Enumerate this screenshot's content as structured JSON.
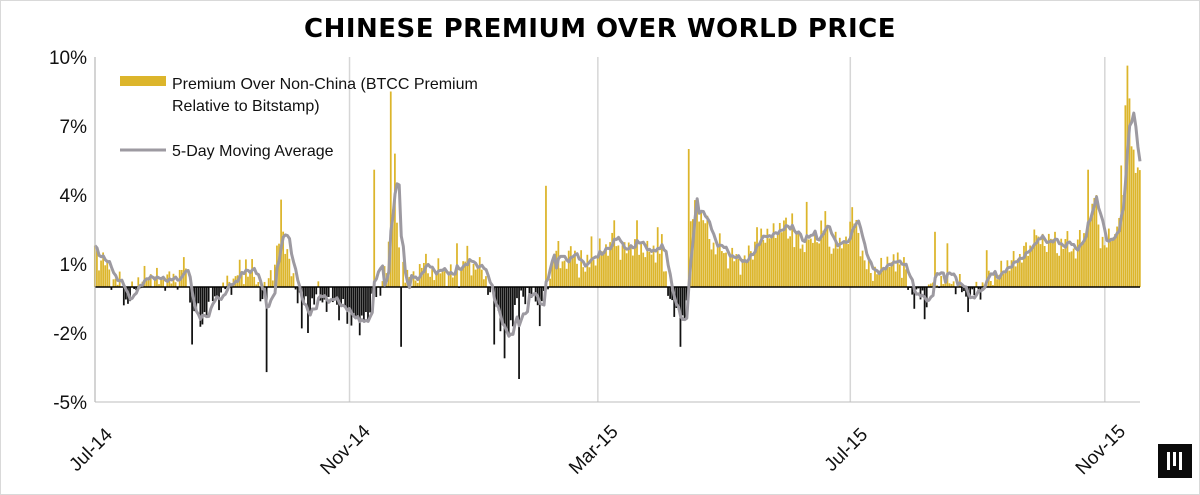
{
  "chart_data": {
    "type": "bar",
    "title": "CHINESE PREMIUM OVER WORLD PRICE",
    "xlabel": "",
    "ylabel": "",
    "ylim": [
      -5,
      10
    ],
    "y_ticks": [
      10,
      7,
      4,
      1,
      -2,
      -5
    ],
    "y_tick_labels": [
      "10%",
      "7%",
      "4%",
      "1%",
      "-2%",
      "-5%"
    ],
    "x_range_days": [
      0,
      505
    ],
    "x_ticks": [
      {
        "day": 0,
        "label": "Jul-14"
      },
      {
        "day": 123,
        "label": "Nov-14"
      },
      {
        "day": 243,
        "label": "Mar-15"
      },
      {
        "day": 365,
        "label": "Jul-15"
      },
      {
        "day": 488,
        "label": "Nov-15"
      }
    ],
    "legend": {
      "placement": "top-left",
      "bar_label_line1": "Premium Over Non-China (BTCC Premium",
      "bar_label_line2": "Relative to Bitstamp)",
      "line_label": "5-Day Moving Average"
    },
    "colors": {
      "positive": "#dcb52b",
      "negative": "#111111",
      "moving_average": "#9d9aa1",
      "grid": "#d6d6d6"
    },
    "series": [
      {
        "name": "Premium Over Non-China (BTCC Premium Relative to Bitstamp)",
        "keypoints": [
          [
            0,
            1.8
          ],
          [
            3,
            1.2
          ],
          [
            6,
            0.8
          ],
          [
            9,
            0.4
          ],
          [
            12,
            0.1
          ],
          [
            15,
            -0.6
          ],
          [
            18,
            -0.3
          ],
          [
            21,
            0.2
          ],
          [
            24,
            0.5
          ],
          [
            27,
            0.3
          ],
          [
            30,
            0.5
          ],
          [
            33,
            0.2
          ],
          [
            36,
            0.4
          ],
          [
            39,
            0.3
          ],
          [
            42,
            0.6
          ],
          [
            45,
            0.2
          ],
          [
            48,
            -0.9
          ],
          [
            51,
            -1.6
          ],
          [
            54,
            -0.8
          ],
          [
            57,
            -0.6
          ],
          [
            60,
            -0.3
          ],
          [
            63,
            -0.1
          ],
          [
            66,
            0.3
          ],
          [
            69,
            0.6
          ],
          [
            72,
            0.5
          ],
          [
            75,
            0.9
          ],
          [
            78,
            0.2
          ],
          [
            81,
            -0.4
          ],
          [
            84,
            0.3
          ],
          [
            87,
            0.9
          ],
          [
            90,
            2.8
          ],
          [
            93,
            1.4
          ],
          [
            96,
            0.3
          ],
          [
            99,
            -0.5
          ],
          [
            102,
            -0.9
          ],
          [
            105,
            -0.6
          ],
          [
            108,
            -0.4
          ],
          [
            111,
            -0.5
          ],
          [
            114,
            -0.6
          ],
          [
            117,
            -0.7
          ],
          [
            120,
            -0.8
          ],
          [
            123,
            -1.0
          ],
          [
            126,
            -1.2
          ],
          [
            129,
            -1.3
          ],
          [
            132,
            -1.1
          ],
          [
            135,
            -0.7
          ],
          [
            138,
            0.1
          ],
          [
            141,
            0.8
          ],
          [
            144,
            3.8
          ],
          [
            147,
            2.0
          ],
          [
            150,
            0.6
          ],
          [
            153,
            0.2
          ],
          [
            156,
            0.6
          ],
          [
            159,
            1.0
          ],
          [
            162,
            0.8
          ],
          [
            165,
            0.5
          ],
          [
            168,
            0.9
          ],
          [
            171,
            0.5
          ],
          [
            174,
            0.4
          ],
          [
            177,
            0.8
          ],
          [
            180,
            1.2
          ],
          [
            183,
            1.0
          ],
          [
            186,
            0.9
          ],
          [
            189,
            0.4
          ],
          [
            192,
            -0.4
          ],
          [
            195,
            -1.2
          ],
          [
            198,
            -1.8
          ],
          [
            201,
            -1.6
          ],
          [
            204,
            -0.6
          ],
          [
            207,
            -0.4
          ],
          [
            210,
            -0.3
          ],
          [
            213,
            -0.4
          ],
          [
            216,
            -0.5
          ],
          [
            219,
            0.2
          ],
          [
            222,
            1.5
          ],
          [
            225,
            1.0
          ],
          [
            228,
            1.4
          ],
          [
            231,
            1.3
          ],
          [
            234,
            1.1
          ],
          [
            237,
            0.6
          ],
          [
            240,
            1.1
          ],
          [
            243,
            1.3
          ],
          [
            246,
            1.7
          ],
          [
            249,
            2.0
          ],
          [
            252,
            1.6
          ],
          [
            255,
            1.8
          ],
          [
            258,
            1.6
          ],
          [
            261,
            1.9
          ],
          [
            264,
            1.5
          ],
          [
            267,
            1.7
          ],
          [
            270,
            1.4
          ],
          [
            273,
            1.2
          ],
          [
            276,
            0.2
          ],
          [
            279,
            -0.6
          ],
          [
            282,
            -1.5
          ],
          [
            285,
            -1.2
          ],
          [
            288,
            2.5
          ],
          [
            291,
            3.8
          ],
          [
            294,
            2.9
          ],
          [
            297,
            2.2
          ],
          [
            300,
            1.8
          ],
          [
            303,
            1.6
          ],
          [
            306,
            1.4
          ],
          [
            309,
            1.2
          ],
          [
            312,
            1.1
          ],
          [
            315,
            1.3
          ],
          [
            318,
            1.6
          ],
          [
            321,
            2.1
          ],
          [
            324,
            2.2
          ],
          [
            327,
            2.3
          ],
          [
            330,
            2.5
          ],
          [
            333,
            2.7
          ],
          [
            336,
            2.3
          ],
          [
            339,
            2.1
          ],
          [
            342,
            1.7
          ],
          [
            345,
            1.8
          ],
          [
            348,
            1.9
          ],
          [
            351,
            2.8
          ],
          [
            354,
            2.0
          ],
          [
            357,
            1.7
          ],
          [
            360,
            1.5
          ],
          [
            363,
            2.2
          ],
          [
            366,
            3.1
          ],
          [
            369,
            2.3
          ],
          [
            372,
            1.1
          ],
          [
            375,
            0.6
          ],
          [
            378,
            0.7
          ],
          [
            381,
            0.9
          ],
          [
            384,
            1.1
          ],
          [
            387,
            1.0
          ],
          [
            390,
            0.7
          ],
          [
            393,
            0.2
          ],
          [
            396,
            -0.5
          ],
          [
            399,
            -0.4
          ],
          [
            402,
            -0.3
          ],
          [
            405,
            0.1
          ],
          [
            408,
            0.5
          ],
          [
            411,
            0.2
          ],
          [
            414,
            0.4
          ],
          [
            417,
            0.1
          ],
          [
            420,
            -0.3
          ],
          [
            423,
            -0.5
          ],
          [
            426,
            -0.2
          ],
          [
            429,
            0.1
          ],
          [
            432,
            0.2
          ],
          [
            435,
            0.5
          ],
          [
            438,
            0.7
          ],
          [
            441,
            0.9
          ],
          [
            444,
            1.2
          ],
          [
            447,
            1.3
          ],
          [
            450,
            1.6
          ],
          [
            453,
            1.8
          ],
          [
            456,
            1.9
          ],
          [
            459,
            2.1
          ],
          [
            462,
            2.0
          ],
          [
            465,
            1.8
          ],
          [
            468,
            1.9
          ],
          [
            471,
            1.7
          ],
          [
            474,
            1.8
          ],
          [
            477,
            2.0
          ],
          [
            480,
            2.4
          ],
          [
            483,
            3.9
          ],
          [
            486,
            2.2
          ],
          [
            489,
            1.8
          ],
          [
            492,
            2.4
          ],
          [
            495,
            3.2
          ],
          [
            497,
            6.5
          ],
          [
            499,
            9.4
          ],
          [
            501,
            6.0
          ],
          [
            503,
            5.3
          ],
          [
            505,
            5.0
          ]
        ],
        "spikes": [
          [
            43,
            1.3
          ],
          [
            47,
            -2.5
          ],
          [
            73,
            1.2
          ],
          [
            83,
            -3.7
          ],
          [
            90,
            3.8
          ],
          [
            100,
            -1.8
          ],
          [
            103,
            -2.0
          ],
          [
            122,
            -1.6
          ],
          [
            128,
            -2.1
          ],
          [
            135,
            5.1
          ],
          [
            143,
            8.5
          ],
          [
            145,
            5.8
          ],
          [
            148,
            -2.6
          ],
          [
            175,
            1.9
          ],
          [
            186,
            1.3
          ],
          [
            193,
            -2.5
          ],
          [
            198,
            -3.1
          ],
          [
            200,
            -2.1
          ],
          [
            205,
            -4.0
          ],
          [
            215,
            -1.7
          ],
          [
            218,
            4.4
          ],
          [
            224,
            2.0
          ],
          [
            235,
            1.6
          ],
          [
            240,
            2.2
          ],
          [
            251,
            2.9
          ],
          [
            262,
            2.9
          ],
          [
            272,
            2.6
          ],
          [
            274,
            2.3
          ],
          [
            283,
            -2.6
          ],
          [
            287,
            6.0
          ],
          [
            320,
            2.6
          ],
          [
            337,
            3.2
          ],
          [
            344,
            3.7
          ],
          [
            353,
            3.3
          ],
          [
            358,
            2.4
          ],
          [
            388,
            1.5
          ],
          [
            391,
            1.3
          ],
          [
            401,
            -1.4
          ],
          [
            406,
            2.4
          ],
          [
            412,
            1.9
          ],
          [
            431,
            1.6
          ],
          [
            454,
            2.5
          ],
          [
            467,
            2.1
          ],
          [
            480,
            5.1
          ],
          [
            484,
            4.0
          ],
          [
            493,
            2.3
          ],
          [
            495,
            3.0
          ],
          [
            497,
            4.0
          ],
          [
            500,
            8.2
          ]
        ]
      },
      {
        "name": "5-Day Moving Average",
        "smoothing_window_days": 5
      }
    ]
  }
}
